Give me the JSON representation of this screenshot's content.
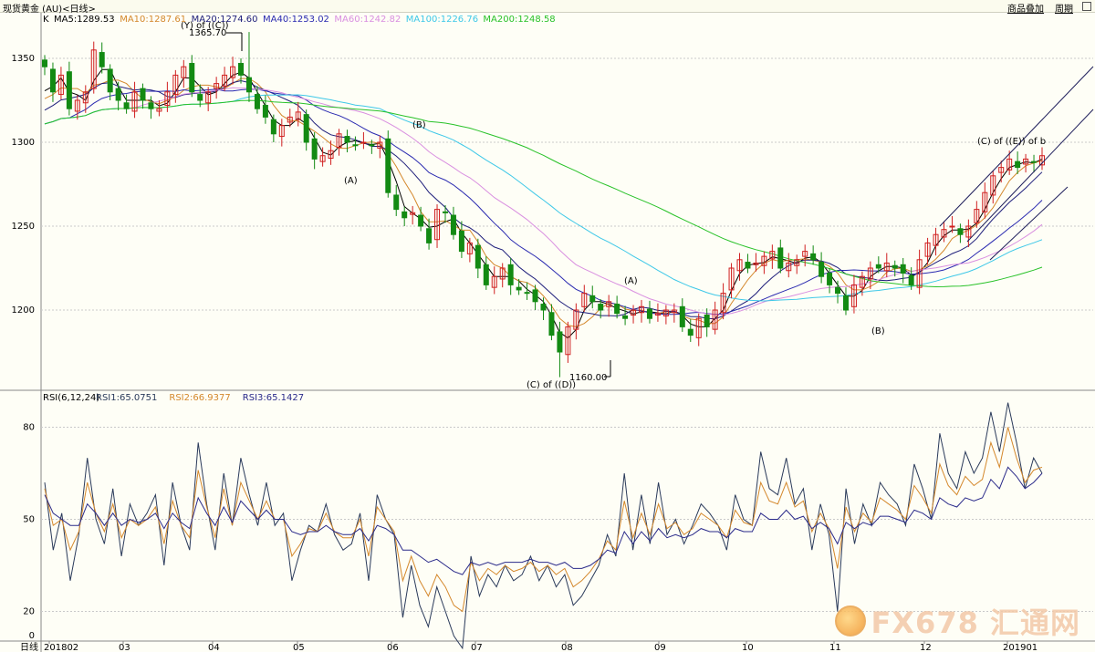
{
  "title_bar": {
    "title": "现货黄金 (AU)<日线>",
    "btn_overlay": "商品叠加",
    "btn_period": "周期"
  },
  "price_panel": {
    "legend_prefix": "K",
    "legend_items": [
      {
        "text": "MA5:1289.53",
        "color": "#000000"
      },
      {
        "text": "MA10:1287.61",
        "color": "#d4882c"
      },
      {
        "text": "MA20:1274.60",
        "color": "#1d1d7a"
      },
      {
        "text": "MA40:1253.02",
        "color": "#2a2ab0"
      },
      {
        "text": "MA60:1242.82",
        "color": "#d98fe0"
      },
      {
        "text": "MA100:1226.76",
        "color": "#3ec8e8"
      },
      {
        "text": "MA200:1248.58",
        "color": "#29c229"
      }
    ],
    "y_ticks": [
      "1350",
      "1300",
      "1250",
      "1200"
    ],
    "annotations": {
      "top_label": "(Y) of ((C))",
      "high_value": "1365.70",
      "a1": "(A)",
      "b1": "(B)",
      "a2": "(A)",
      "low_value": "1160.00",
      "low_label": "(C) of ((D))",
      "b2": "(B)",
      "right_label": "(C) of ((E)) of b"
    }
  },
  "rsi_panel": {
    "legend_prefix": "RSI(6,12,24)",
    "legend_items": [
      {
        "text": "RSI1:65.0751",
        "color": "#2a3a5a"
      },
      {
        "text": "RSI2:66.9377",
        "color": "#d4882c"
      },
      {
        "text": "RSI3:65.1427",
        "color": "#2a2a8a"
      }
    ],
    "y_ticks": [
      "80",
      "50",
      "20",
      "0"
    ]
  },
  "x_axis": {
    "period_label": "日线",
    "ticks": [
      "201802",
      "03",
      "04",
      "05",
      "06",
      "07",
      "08",
      "09",
      "10",
      "11",
      "12",
      "201901"
    ]
  },
  "watermark": {
    "text": "FX678 汇通网"
  },
  "colors": {
    "background": "#fefef6",
    "bull_candle": "#d02020",
    "bear_candle": "#138a13",
    "grid": "#c9c9c9"
  },
  "chart_data": [
    {
      "type": "candlestick",
      "title": "现货黄金 (AU)<日线>",
      "y_range": [
        1155,
        1375
      ],
      "y_ticks": [
        1200,
        1250,
        1300,
        1350
      ],
      "x_ticks": [
        "201802",
        "03",
        "04",
        "05",
        "06",
        "07",
        "08",
        "09",
        "10",
        "11",
        "12",
        "201901"
      ],
      "close_approx": [
        1345,
        1330,
        1340,
        1320,
        1325,
        1330,
        1355,
        1345,
        1330,
        1325,
        1320,
        1330,
        1325,
        1320,
        1320,
        1330,
        1340,
        1345,
        1330,
        1325,
        1330,
        1335,
        1340,
        1345,
        1340,
        1330,
        1320,
        1315,
        1305,
        1310,
        1315,
        1318,
        1300,
        1290,
        1292,
        1295,
        1305,
        1300,
        1298,
        1300,
        1298,
        1300,
        1270,
        1260,
        1255,
        1258,
        1250,
        1240,
        1260,
        1258,
        1245,
        1235,
        1240,
        1225,
        1215,
        1220,
        1225,
        1215,
        1212,
        1210,
        1205,
        1200,
        1185,
        1175,
        1190,
        1200,
        1210,
        1205,
        1200,
        1205,
        1198,
        1195,
        1200,
        1202,
        1195,
        1198,
        1200,
        1200,
        1190,
        1185,
        1195,
        1190,
        1200,
        1210,
        1225,
        1230,
        1225,
        1228,
        1232,
        1235,
        1225,
        1228,
        1230,
        1235,
        1230,
        1220,
        1215,
        1210,
        1200,
        1215,
        1220,
        1225,
        1225,
        1228,
        1225,
        1222,
        1215,
        1230,
        1240,
        1245,
        1248,
        1250,
        1245,
        1250,
        1260,
        1270,
        1280,
        1285,
        1290,
        1285,
        1290,
        1288,
        1292
      ],
      "moving_averages": [
        {
          "name": "MA5",
          "last": 1289.53
        },
        {
          "name": "MA10",
          "last": 1287.61
        },
        {
          "name": "MA20",
          "last": 1274.6
        },
        {
          "name": "MA40",
          "last": 1253.02
        },
        {
          "name": "MA60",
          "last": 1242.82
        },
        {
          "name": "MA100",
          "last": 1226.76
        },
        {
          "name": "MA200",
          "last": 1248.58
        }
      ],
      "annotations": [
        {
          "text": "(Y) of ((C))"
        },
        {
          "text": "1365.70",
          "value": 1365.7
        },
        {
          "text": "(A)"
        },
        {
          "text": "(B)"
        },
        {
          "text": "(A)"
        },
        {
          "text": "1160.00",
          "value": 1160.0
        },
        {
          "text": "(C) of ((D))"
        },
        {
          "text": "(B)"
        },
        {
          "text": "(C) of ((E)) of b"
        }
      ]
    },
    {
      "type": "line",
      "title": "RSI(6,12,24)",
      "y_range": [
        0,
        90
      ],
      "y_ticks": [
        0,
        20,
        50,
        80
      ],
      "series": [
        {
          "name": "RSI1",
          "last": 65.0751,
          "values": [
            62,
            40,
            52,
            30,
            45,
            70,
            50,
            42,
            60,
            38,
            55,
            48,
            52,
            58,
            35,
            62,
            48,
            40,
            75,
            55,
            40,
            65,
            48,
            70,
            58,
            48,
            62,
            48,
            52,
            30,
            40,
            48,
            46,
            55,
            45,
            40,
            42,
            52,
            30,
            58,
            50,
            45,
            18,
            35,
            22,
            15,
            28,
            20,
            12,
            8,
            38,
            25,
            32,
            28,
            35,
            30,
            32,
            38,
            30,
            35,
            28,
            32,
            22,
            25,
            30,
            35,
            45,
            38,
            65,
            40,
            58,
            42,
            62,
            45,
            50,
            42,
            48,
            55,
            52,
            48,
            40,
            58,
            50,
            48,
            72,
            60,
            58,
            70,
            55,
            60,
            40,
            55,
            45,
            20,
            60,
            42,
            55,
            48,
            62,
            58,
            55,
            48,
            68,
            60,
            50,
            78,
            65,
            60,
            72,
            65,
            70,
            85,
            72,
            88,
            75,
            60,
            70,
            65
          ]
        },
        {
          "name": "RSI2",
          "last": 66.9377,
          "values": [
            60,
            48,
            50,
            40,
            46,
            62,
            52,
            46,
            55,
            44,
            50,
            48,
            50,
            54,
            42,
            56,
            48,
            44,
            66,
            54,
            44,
            60,
            48,
            62,
            56,
            50,
            56,
            50,
            50,
            38,
            42,
            47,
            46,
            52,
            46,
            44,
            44,
            50,
            38,
            54,
            50,
            46,
            30,
            38,
            30,
            25,
            32,
            28,
            22,
            20,
            36,
            30,
            34,
            32,
            35,
            33,
            34,
            36,
            33,
            35,
            32,
            34,
            28,
            30,
            33,
            37,
            43,
            40,
            56,
            44,
            52,
            45,
            55,
            47,
            49,
            45,
            47,
            52,
            50,
            48,
            44,
            53,
            49,
            48,
            62,
            56,
            55,
            62,
            54,
            56,
            46,
            52,
            47,
            34,
            54,
            46,
            52,
            49,
            57,
            55,
            53,
            50,
            61,
            57,
            52,
            68,
            61,
            58,
            64,
            61,
            63,
            75,
            67,
            80,
            70,
            62,
            66,
            67
          ]
        },
        {
          "name": "RSI3",
          "last": 65.1427,
          "values": [
            58,
            52,
            50,
            48,
            48,
            55,
            52,
            48,
            52,
            48,
            50,
            49,
            50,
            52,
            47,
            52,
            49,
            47,
            57,
            52,
            48,
            54,
            49,
            56,
            53,
            50,
            53,
            50,
            50,
            46,
            45,
            46,
            46,
            48,
            46,
            45,
            45,
            47,
            43,
            48,
            47,
            45,
            40,
            40,
            38,
            36,
            37,
            35,
            33,
            32,
            36,
            35,
            36,
            35,
            36,
            36,
            36,
            37,
            36,
            36,
            35,
            36,
            34,
            34,
            35,
            37,
            40,
            39,
            46,
            42,
            46,
            43,
            47,
            44,
            45,
            44,
            45,
            47,
            46,
            46,
            44,
            47,
            46,
            46,
            52,
            50,
            50,
            53,
            50,
            51,
            47,
            49,
            47,
            42,
            49,
            47,
            49,
            48,
            51,
            51,
            50,
            49,
            53,
            52,
            50,
            57,
            55,
            54,
            57,
            56,
            57,
            63,
            60,
            67,
            64,
            60,
            62,
            65
          ]
        }
      ]
    }
  ]
}
